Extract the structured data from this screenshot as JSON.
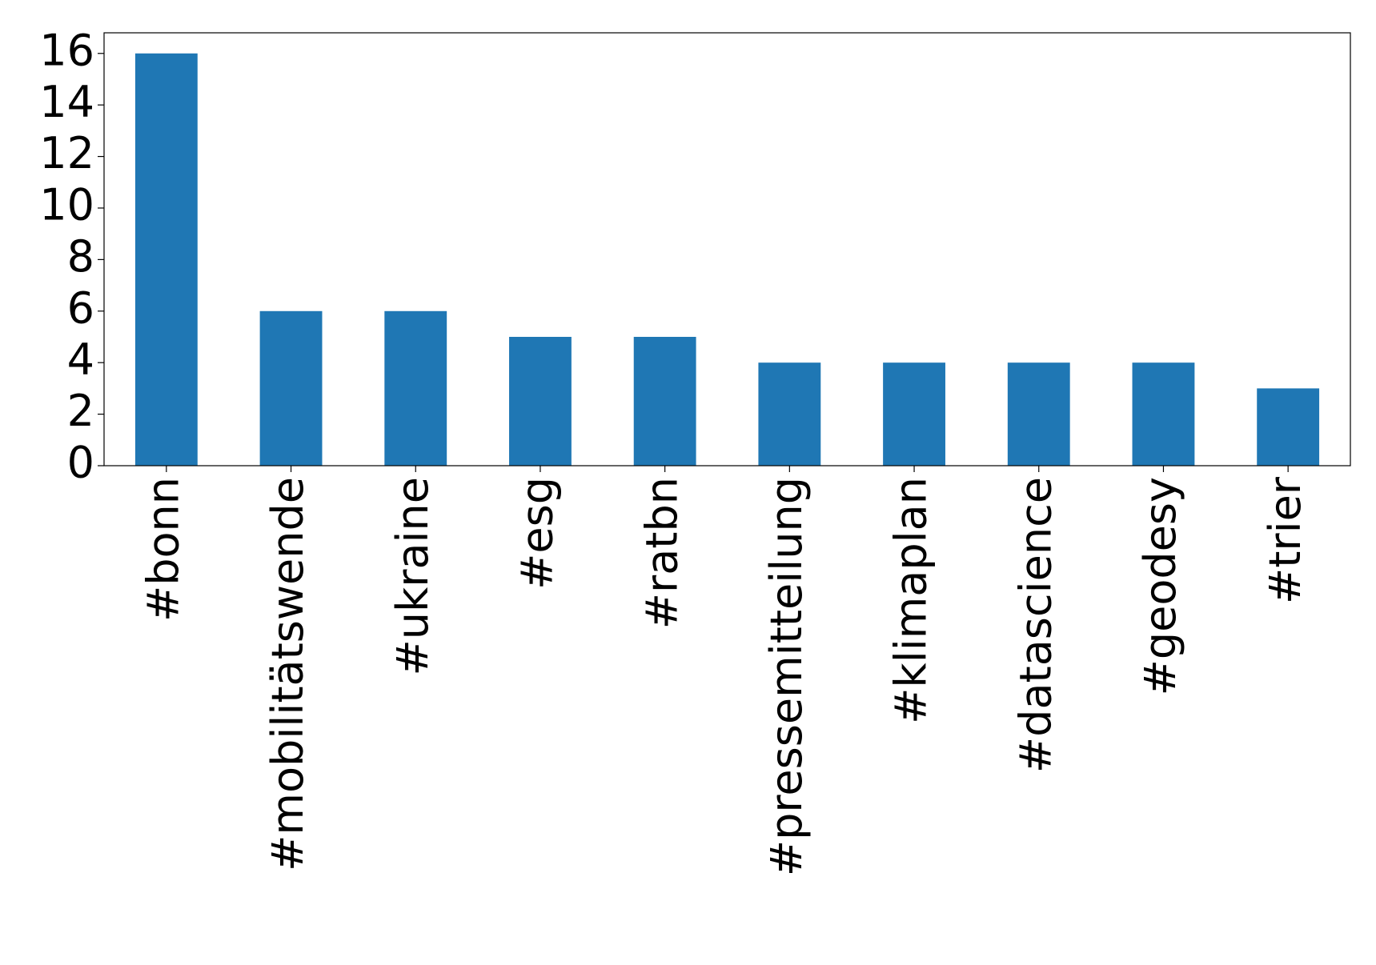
{
  "chart_data": {
    "type": "bar",
    "categories": [
      "#bonn",
      "#mobilitätswende",
      "#ukraine",
      "#esg",
      "#ratbn",
      "#pressemitteilung",
      "#klimaplan",
      "#datascience",
      "#geodesy",
      "#trier"
    ],
    "values": [
      16,
      6,
      6,
      5,
      5,
      4,
      4,
      4,
      4,
      3
    ],
    "color": "#1f77b4",
    "ylim": [
      0,
      16.8
    ],
    "yticks": [
      0,
      2,
      4,
      6,
      8,
      10,
      12,
      14,
      16
    ],
    "grid": false
  }
}
